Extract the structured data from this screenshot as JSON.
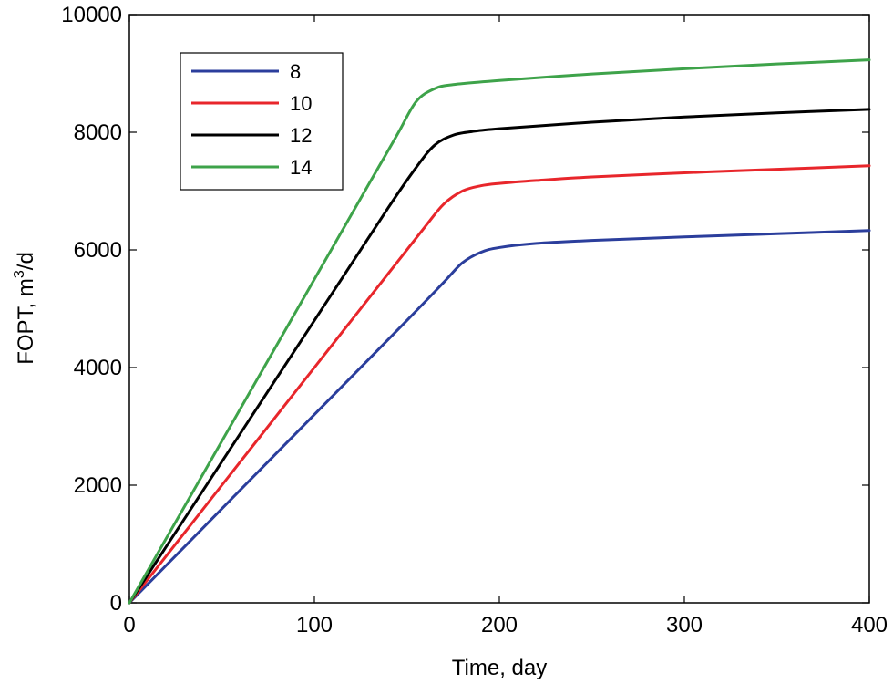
{
  "chart_data": {
    "type": "line",
    "title": "",
    "xlabel": "Time, day",
    "ylabel_main": "FOPT, m",
    "ylabel_sup": "3",
    "ylabel_tail": "/d",
    "xlim": [
      0,
      400
    ],
    "ylim": [
      0,
      10000
    ],
    "xticks": [
      0,
      100,
      200,
      300,
      400
    ],
    "yticks": [
      0,
      2000,
      4000,
      6000,
      8000,
      10000
    ],
    "xtick_labels": [
      "0",
      "100",
      "200",
      "300",
      "400"
    ],
    "ytick_labels": [
      "0",
      "2000",
      "4000",
      "6000",
      "8000",
      "10000"
    ],
    "grid": false,
    "legend_position": "top-left",
    "series": [
      {
        "name": "8",
        "color": "#2b3e9c",
        "x": [
          0,
          50,
          100,
          150,
          170,
          180,
          190,
          200,
          220,
          250,
          300,
          350,
          400
        ],
        "y": [
          0,
          1600,
          3200,
          4800,
          5450,
          5780,
          5960,
          6040,
          6110,
          6160,
          6220,
          6275,
          6330
        ]
      },
      {
        "name": "10",
        "color": "#e8262b",
        "x": [
          0,
          50,
          100,
          140,
          160,
          170,
          180,
          190,
          200,
          220,
          250,
          300,
          350,
          400
        ],
        "y": [
          0,
          2000,
          4000,
          5600,
          6400,
          6780,
          7000,
          7090,
          7130,
          7180,
          7240,
          7310,
          7370,
          7430
        ]
      },
      {
        "name": "12",
        "color": "#000000",
        "x": [
          0,
          50,
          100,
          140,
          155,
          165,
          175,
          185,
          200,
          250,
          300,
          350,
          400
        ],
        "y": [
          0,
          2400,
          4800,
          6720,
          7400,
          7780,
          7950,
          8010,
          8060,
          8170,
          8260,
          8330,
          8390
        ]
      },
      {
        "name": "14",
        "color": "#3ea34a",
        "x": [
          0,
          50,
          100,
          130,
          145,
          155,
          165,
          175,
          200,
          250,
          300,
          350,
          400
        ],
        "y": [
          0,
          2750,
          5500,
          7150,
          7970,
          8520,
          8740,
          8810,
          8880,
          8990,
          9080,
          9160,
          9230
        ]
      }
    ]
  }
}
